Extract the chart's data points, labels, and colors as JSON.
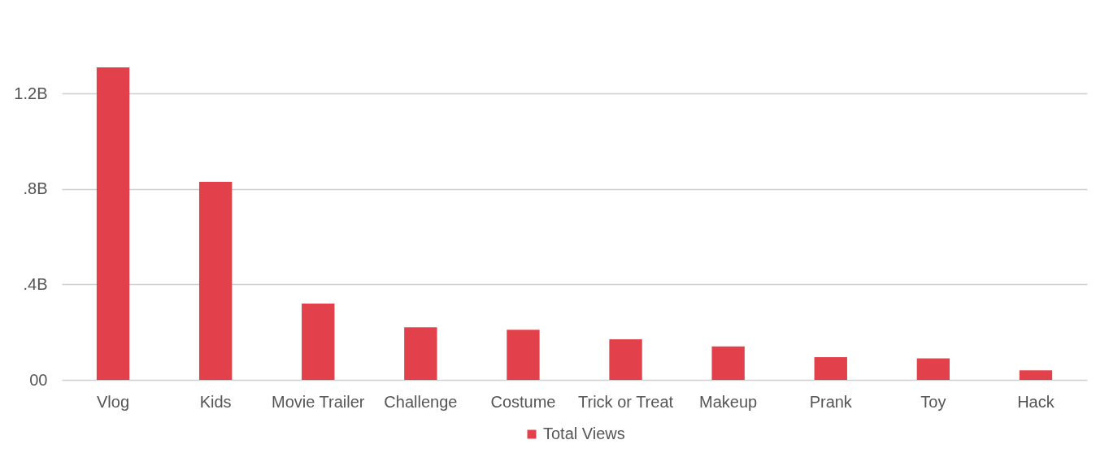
{
  "chart_data": {
    "type": "bar",
    "categories": [
      "Vlog",
      "Kids",
      "Movie Trailer",
      "Challenge",
      "Costume",
      "Trick or Treat",
      "Makeup",
      "Prank",
      "Toy",
      "Hack"
    ],
    "series": [
      {
        "name": "Total Views",
        "color": "#e2404a",
        "values": [
          1.31,
          0.83,
          0.32,
          0.22,
          0.21,
          0.17,
          0.14,
          0.095,
          0.09,
          0.04
        ]
      }
    ],
    "ylim": [
      0,
      1.31
    ],
    "yticks": [
      {
        "value": 0,
        "label": "00"
      },
      {
        "value": 0.4,
        "label": ".4B"
      },
      {
        "value": 0.8,
        "label": ".8B"
      },
      {
        "value": 1.2,
        "label": "1.2B"
      }
    ],
    "grid": "y",
    "legend": "bottom"
  }
}
